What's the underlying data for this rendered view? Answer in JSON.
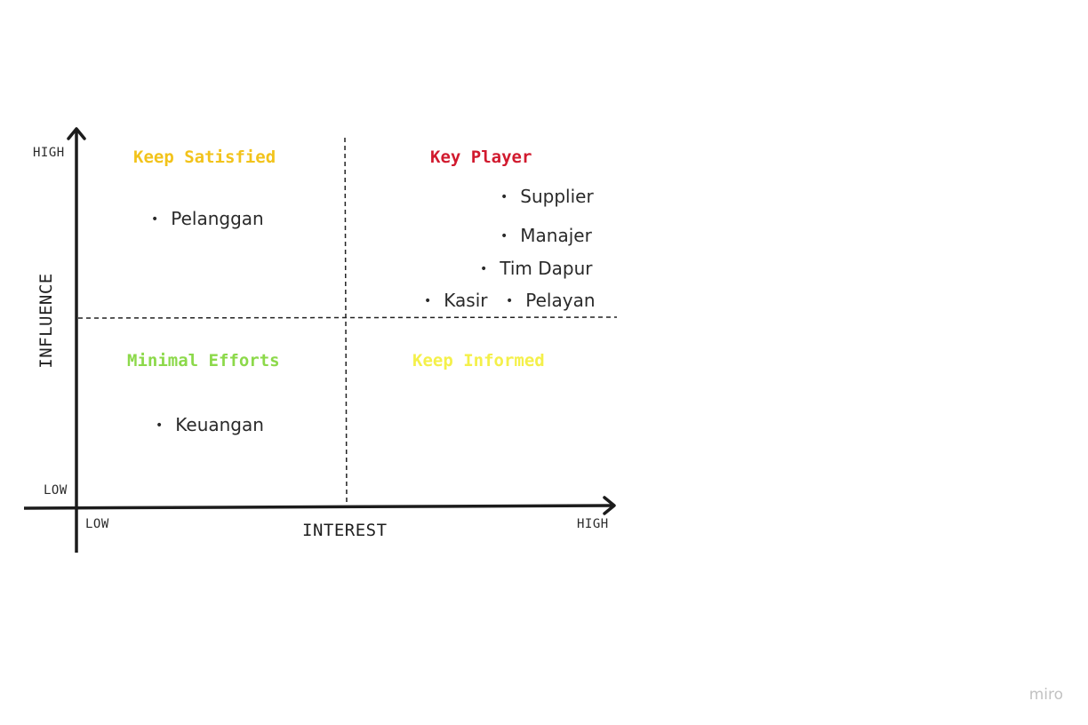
{
  "axes": {
    "y_title": "INFLUENCE",
    "x_title": "INTEREST",
    "y_high": "HIGH",
    "y_low": "LOW",
    "x_low": "LOW",
    "x_high": "HIGH"
  },
  "quadrants": {
    "top_left": {
      "title": "Keep Satisfied",
      "color": "#F2C31B",
      "items": [
        "Pelanggan"
      ]
    },
    "top_right": {
      "title": "Key Player",
      "color": "#D11A2E",
      "items": [
        "Supplier",
        "Manajer",
        "Tim Dapur",
        "Kasir",
        "Pelayan"
      ]
    },
    "bottom_left": {
      "title": "Minimal Efforts",
      "color": "#8CD94A",
      "items": [
        "Keuangan"
      ]
    },
    "bottom_right": {
      "title": "Keep Informed",
      "color": "#F4F04A",
      "items": []
    }
  },
  "brand": "miro"
}
